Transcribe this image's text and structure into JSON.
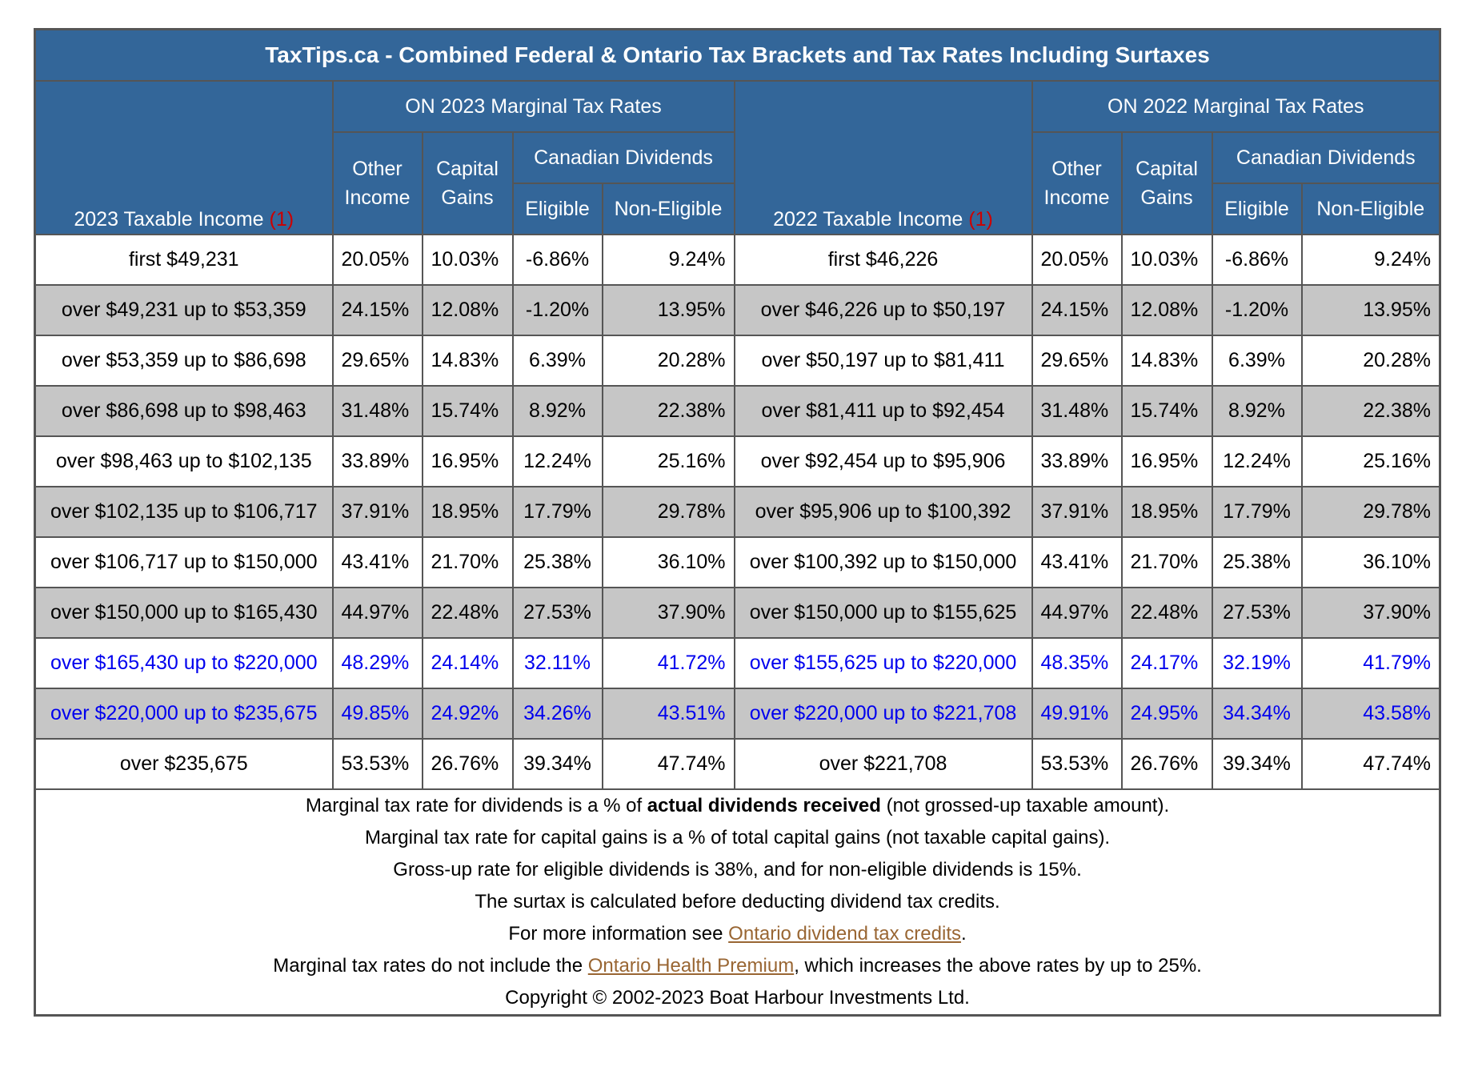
{
  "title": "TaxTips.ca - Combined Federal & Ontario Tax Brackets and Tax Rates Including Surtaxes",
  "headers": {
    "group_2023": "ON 2023 Marginal Tax Rates",
    "group_2022": "ON 2022 Marginal Tax Rates",
    "income_2023": "2023 Taxable Income",
    "income_2022": "2022 Taxable Income",
    "ref": "(1)",
    "other_income": "Other Income",
    "capital_gains": "Capital Gains",
    "canadian_dividends": "Canadian Dividends",
    "eligible": "Eligible",
    "non_eligible": "Non-Eligible"
  },
  "rows": [
    {
      "income2023": "first $49,231",
      "r2023": [
        "20.05%",
        "10.03%",
        "-6.86%",
        "9.24%"
      ],
      "income2022": "first $46,226",
      "r2022": [
        "20.05%",
        "10.03%",
        "-6.86%",
        "9.24%"
      ]
    },
    {
      "income2023": "over $49,231 up to $53,359",
      "r2023": [
        "24.15%",
        "12.08%",
        "-1.20%",
        "13.95%"
      ],
      "income2022": "over $46,226 up to $50,197",
      "r2022": [
        "24.15%",
        "12.08%",
        "-1.20%",
        "13.95%"
      ]
    },
    {
      "income2023": "over $53,359 up to $86,698",
      "r2023": [
        "29.65%",
        "14.83%",
        "6.39%",
        "20.28%"
      ],
      "income2022": "over $50,197 up to $81,411",
      "r2022": [
        "29.65%",
        "14.83%",
        "6.39%",
        "20.28%"
      ]
    },
    {
      "income2023": "over $86,698 up to $98,463",
      "r2023": [
        "31.48%",
        "15.74%",
        "8.92%",
        "22.38%"
      ],
      "income2022": "over $81,411 up to $92,454",
      "r2022": [
        "31.48%",
        "15.74%",
        "8.92%",
        "22.38%"
      ]
    },
    {
      "income2023": "over $98,463 up to $102,135",
      "r2023": [
        "33.89%",
        "16.95%",
        "12.24%",
        "25.16%"
      ],
      "income2022": "over $92,454 up to $95,906",
      "r2022": [
        "33.89%",
        "16.95%",
        "12.24%",
        "25.16%"
      ]
    },
    {
      "income2023": "over $102,135 up to $106,717",
      "r2023": [
        "37.91%",
        "18.95%",
        "17.79%",
        "29.78%"
      ],
      "income2022": "over $95,906 up to $100,392",
      "r2022": [
        "37.91%",
        "18.95%",
        "17.79%",
        "29.78%"
      ]
    },
    {
      "income2023": "over $106,717 up to $150,000",
      "r2023": [
        "43.41%",
        "21.70%",
        "25.38%",
        "36.10%"
      ],
      "income2022": "over $100,392 up to $150,000",
      "r2022": [
        "43.41%",
        "21.70%",
        "25.38%",
        "36.10%"
      ]
    },
    {
      "income2023": "over $150,000 up to $165,430",
      "r2023": [
        "44.97%",
        "22.48%",
        "27.53%",
        "37.90%"
      ],
      "income2022": "over $150,000 up to $155,625",
      "r2022": [
        "44.97%",
        "22.48%",
        "27.53%",
        "37.90%"
      ]
    },
    {
      "income2023": "over $165,430 up to $220,000",
      "r2023": [
        "48.29%",
        "24.14%",
        "32.11%",
        "41.72%"
      ],
      "income2022": "over $155,625 up to $220,000",
      "r2022": [
        "48.35%",
        "24.17%",
        "32.19%",
        "41.79%"
      ]
    },
    {
      "income2023": "over $220,000 up to $235,675",
      "r2023": [
        "49.85%",
        "24.92%",
        "34.26%",
        "43.51%"
      ],
      "income2022": "over $220,000 up to $221,708",
      "r2022": [
        "49.91%",
        "24.95%",
        "34.34%",
        "43.58%"
      ]
    },
    {
      "income2023": "over $235,675",
      "r2023": [
        "53.53%",
        "26.76%",
        "39.34%",
        "47.74%"
      ],
      "income2022": "over $221,708",
      "r2022": [
        "53.53%",
        "26.76%",
        "39.34%",
        "47.74%"
      ]
    }
  ],
  "notes": {
    "line1_pre": "Marginal tax rate for dividends is a % of ",
    "line1_bold": "actual dividends received",
    "line1_post": " (not grossed-up taxable amount).",
    "line2": "Marginal tax rate for capital gains is a % of total capital gains (not taxable capital gains).",
    "line3": "Gross-up rate for eligible dividends is 38%, and for non-eligible dividends is 15%.",
    "line4": "The surtax is calculated before deducting dividend tax credits.",
    "line5_pre": "For more information see ",
    "line5_link": "Ontario dividend tax credits",
    "line5_post": ".",
    "line6_pre": "Marginal tax rates do not include the ",
    "line6_link": "Ontario Health Premium",
    "line6_post": ", which increases the above rates by up to 25%.",
    "copyright": "Copyright © 2002-2023 Boat Harbour Investments Ltd."
  },
  "colors": {
    "header_bg": "#336699",
    "alt_row_bg": "#c6c6c6",
    "highlight_text": "#0000ee",
    "ref_red": "#cc0000",
    "link": "#996633"
  }
}
